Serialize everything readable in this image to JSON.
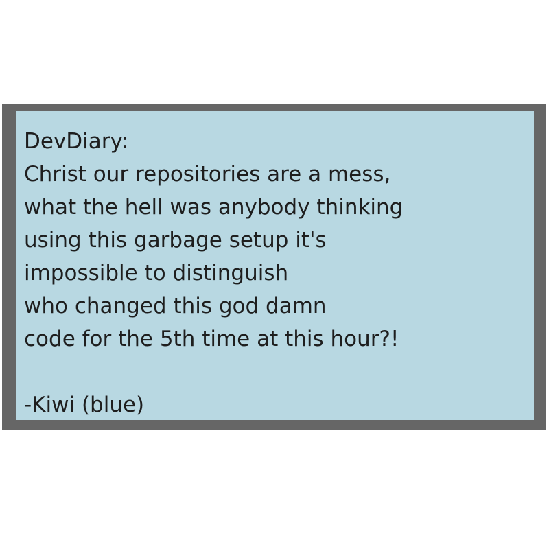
{
  "diary": {
    "lines": [
      "DevDiary:",
      "Christ our repositories are a mess,",
      "what the hell was anybody thinking",
      "using this garbage setup it's",
      "impossible to distinguish",
      "who changed this god damn",
      "code for the 5th time at this hour?!",
      "",
      "-Kiwi (blue)"
    ]
  },
  "colors": {
    "frame": "#666666",
    "panel": "#b8d8e2",
    "text": "#1e1e1e"
  }
}
